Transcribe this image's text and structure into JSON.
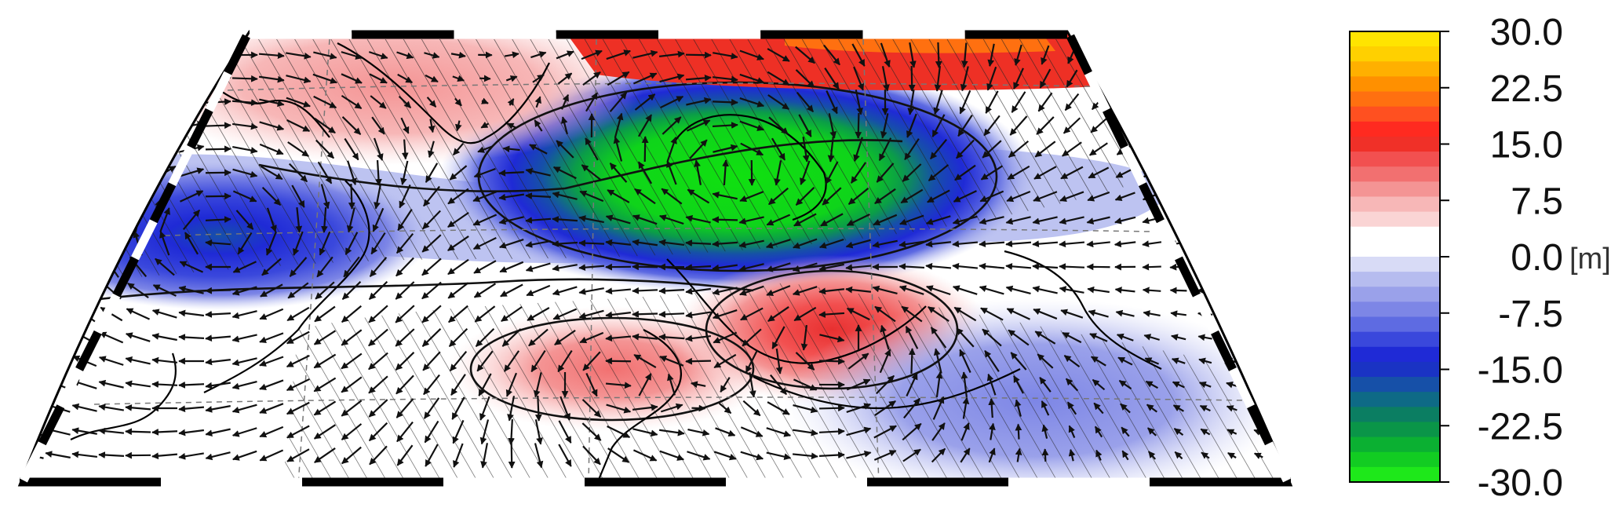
{
  "map": {
    "projection": "conic",
    "region": "North Atlantic - Europe - Middle East",
    "field_shading": "geopotential height anomaly",
    "overlays": [
      "wind anomaly vectors",
      "significance hatching",
      "coastlines",
      "country borders",
      "graticule"
    ],
    "features": [
      {
        "sign": "negative",
        "strength": "strong",
        "location": "northern Europe / Scandinavia",
        "peak_color": "#10e010"
      },
      {
        "sign": "negative",
        "strength": "moderate",
        "location": "Labrador / western North Atlantic",
        "peak_color": "#1a5fe0"
      },
      {
        "sign": "positive",
        "strength": "moderate",
        "location": "Greenland",
        "peak_color": "#f7b7b7"
      },
      {
        "sign": "positive",
        "strength": "moderate",
        "location": "Arctic / Barents Sea",
        "peak_color": "#ee3025"
      },
      {
        "sign": "positive",
        "strength": "moderate",
        "location": "Mediterranean / Balkans",
        "peak_color": "#e84040"
      },
      {
        "sign": "positive",
        "strength": "weak",
        "location": "eastern subtropical Atlantic",
        "peak_color": "#f6a8a8"
      },
      {
        "sign": "negative",
        "strength": "weak",
        "location": "Middle East / Arabian Peninsula",
        "peak_color": "#8a95ea"
      }
    ]
  },
  "colorbar": {
    "unit": "[m]",
    "tick_labels": [
      "30.0",
      "22.5",
      "15.0",
      "7.5",
      "0.0",
      "-7.5",
      "-15.0",
      "-22.5",
      "-30.0"
    ],
    "levels_top_to_bottom": [
      "#ffe400",
      "#ffd000",
      "#ffb000",
      "#ff9000",
      "#ff7010",
      "#ff5020",
      "#ff2a20",
      "#f03028",
      "#f25050",
      "#f27070",
      "#f49494",
      "#f7b7b7",
      "#fad4d4",
      "#ffffff",
      "#ffffff",
      "#d8dbf6",
      "#b6bcef",
      "#9aa1ea",
      "#7d86e6",
      "#5e6be2",
      "#3a48dc",
      "#1f2ad6",
      "#1a33c4",
      "#1650a8",
      "#0e6a86",
      "#0b7e62",
      "#0a9548",
      "#0bb032",
      "#12cc22",
      "#1ee81a"
    ]
  }
}
